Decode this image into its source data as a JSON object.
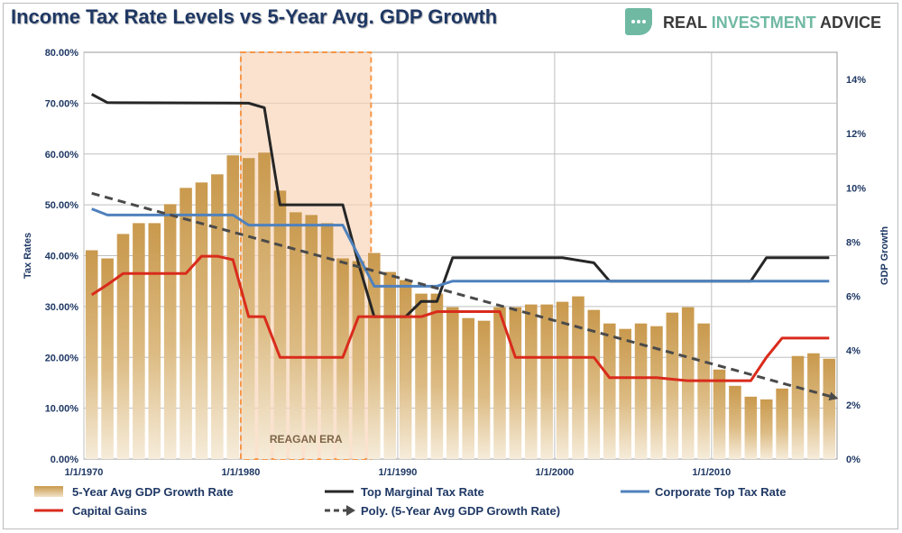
{
  "header": {
    "title": "Income Tax Rate Levels vs 5-Year Avg. GDP Growth",
    "logo_text_main": "REAL ",
    "logo_text_accent": "INVESTMENT",
    "logo_text_end": " ADVICE"
  },
  "chart_data": {
    "type": "bar",
    "title": "Income Tax Rate Levels vs 5-Year Avg. GDP Growth",
    "ylabel": "Tax Rates",
    "y2label": "GDP Growth",
    "ylim": [
      0,
      80
    ],
    "y2lim": [
      0,
      15
    ],
    "yticks": [
      "0.00%",
      "10.00%",
      "20.00%",
      "30.00%",
      "40.00%",
      "50.00%",
      "60.00%",
      "70.00%",
      "80.00%"
    ],
    "y2ticks": [
      "0%",
      "2%",
      "4%",
      "6%",
      "8%",
      "10%",
      "12%",
      "14%"
    ],
    "xticks": [
      "1/1/1970",
      "1/1/1980",
      "1/1/1990",
      "1/1/2000",
      "1/1/2010"
    ],
    "xlim": [
      1969.5,
      2017.5
    ],
    "annotation": "REAGAN ERA",
    "shaded_region": [
      1979.5,
      1987.8
    ],
    "colors": {
      "bars": "#c9994d",
      "top_marginal": "#262626",
      "corporate": "#4f81bd",
      "capital_gains": "#d92b1c",
      "poly": "#4a4a4a",
      "shade": "#f7d3b5",
      "shade_border": "#f79646"
    },
    "legend": [
      "5-Year Avg GDP Growth Rate",
      "Top Marginal Tax Rate",
      "Corporate Top Tax Rate",
      "Capital Gains",
      "Poly. (5-Year Avg GDP Growth Rate)"
    ],
    "bars": {
      "name": "5-Year Avg GDP Growth Rate",
      "x": [
        1970,
        1971,
        1972,
        1973,
        1974,
        1975,
        1976,
        1977,
        1978,
        1979,
        1980,
        1981,
        1982,
        1983,
        1984,
        1985,
        1986,
        1987,
        1988,
        1989,
        1990,
        1991,
        1992,
        1993,
        1994,
        1995,
        1996,
        1997,
        1998,
        1999,
        2000,
        2001,
        2002,
        2003,
        2004,
        2005,
        2006,
        2007,
        2008,
        2009,
        2010,
        2011,
        2012,
        2013,
        2014,
        2015,
        2016,
        2017
      ],
      "values": [
        7.7,
        7.4,
        8.3,
        8.7,
        8.7,
        9.4,
        10.0,
        10.2,
        10.5,
        11.2,
        11.1,
        11.3,
        9.9,
        9.1,
        9.0,
        8.7,
        7.4,
        7.3,
        7.6,
        6.9,
        6.6,
        6.1,
        6.1,
        5.6,
        5.2,
        5.1,
        5.6,
        5.6,
        5.7,
        5.7,
        5.8,
        6.0,
        5.5,
        5.0,
        4.8,
        5.0,
        4.9,
        5.4,
        5.6,
        5.0,
        3.3,
        2.7,
        2.3,
        2.2,
        2.6,
        3.8,
        3.9,
        3.7
      ]
    },
    "series": [
      {
        "name": "Top Marginal Tax Rate",
        "x": [
          1970,
          1971,
          1980,
          1981,
          1982,
          1983,
          1986,
          1987,
          1988,
          1990,
          1991,
          1992,
          1993,
          2000,
          2002,
          2003,
          2012,
          2013,
          2017
        ],
        "values": [
          71.75,
          70.1,
          70,
          69.1,
          50,
          50,
          50,
          38.5,
          28,
          28,
          31,
          31,
          39.6,
          39.6,
          38.6,
          35,
          35,
          39.6,
          39.6
        ]
      },
      {
        "name": "Corporate Top Tax Rate",
        "x": [
          1970,
          1971,
          1979,
          1980,
          1986,
          1987,
          1988,
          1992,
          1993,
          2017
        ],
        "values": [
          49.2,
          48,
          48,
          46,
          46,
          40,
          34,
          34,
          35,
          35
        ]
      },
      {
        "name": "Capital Gains",
        "x": [
          1970,
          1971,
          1972,
          1976,
          1977,
          1978,
          1979,
          1980,
          1981,
          1982,
          1986,
          1987,
          1991,
          1992,
          1996,
          1997,
          2002,
          2003,
          2006,
          2007,
          2008,
          2012,
          2013,
          2014,
          2017
        ],
        "values": [
          32.3,
          34.3,
          36.5,
          36.5,
          39.9,
          39.9,
          39.2,
          28,
          28,
          20,
          20,
          28,
          28,
          29,
          29,
          20,
          20,
          16,
          16,
          15.7,
          15.4,
          15.4,
          20,
          23.8,
          23.8
        ]
      }
    ],
    "poly": {
      "name": "Poly. (5-Year Avg GDP Growth Rate)",
      "x_start": 1970,
      "x_end": 2017.6,
      "start_value": 9.8,
      "end_value": 2.3
    }
  }
}
